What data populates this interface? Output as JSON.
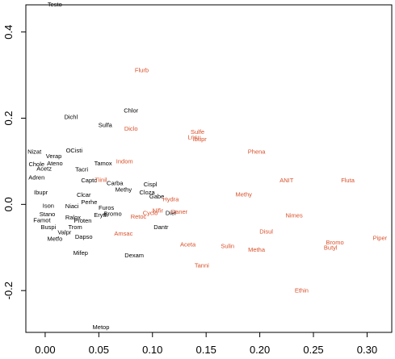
{
  "chart_data": {
    "type": "scatter",
    "title": "",
    "xlabel": "",
    "ylabel": "",
    "xlim": [
      -0.018,
      0.323
    ],
    "ylim": [
      -0.297,
      0.463
    ],
    "x_ticks": [
      0.0,
      0.05,
      0.1,
      0.15,
      0.2,
      0.25,
      0.3
    ],
    "x_tick_labels": [
      "0.00",
      "0.05",
      "0.10",
      "0.15",
      "0.20",
      "0.25",
      "0.30"
    ],
    "y_ticks": [
      -0.2,
      0.0,
      0.2,
      0.4
    ],
    "y_tick_labels": [
      "-0.2",
      "0.0",
      "0.2",
      "0.4"
    ],
    "grid": false,
    "legend": "none",
    "colors": {
      "black": "#000000",
      "red": "#d9502a"
    },
    "series": [
      {
        "color": "black",
        "points": [
          {
            "label": "Testo",
            "x": 0.009,
            "y": 0.463
          },
          {
            "label": "Dichl",
            "x": 0.024,
            "y": 0.202
          },
          {
            "label": "Chlor",
            "x": 0.08,
            "y": 0.217
          },
          {
            "label": "Sulfa",
            "x": 0.056,
            "y": 0.183
          },
          {
            "label": "Nizat",
            "x": -0.01,
            "y": 0.121
          },
          {
            "label": "Verap",
            "x": 0.008,
            "y": 0.111
          },
          {
            "label": "OCisti",
            "x": 0.027,
            "y": 0.124
          },
          {
            "label": "Chole",
            "x": -0.008,
            "y": 0.092
          },
          {
            "label": "Ateno",
            "x": 0.009,
            "y": 0.094
          },
          {
            "label": "Tamox",
            "x": 0.054,
            "y": 0.094
          },
          {
            "label": "Acetz",
            "x": -0.001,
            "y": 0.082
          },
          {
            "label": "Tacri",
            "x": 0.034,
            "y": 0.08
          },
          {
            "label": "Adren",
            "x": -0.008,
            "y": 0.061
          },
          {
            "label": "Carba",
            "x": 0.065,
            "y": 0.048
          },
          {
            "label": "Cispl",
            "x": 0.098,
            "y": 0.046
          },
          {
            "label": "Capto",
            "x": 0.041,
            "y": 0.055
          },
          {
            "label": "Methy",
            "x": 0.073,
            "y": 0.033
          },
          {
            "label": "Cloza",
            "x": 0.095,
            "y": 0.027
          },
          {
            "label": "Clcar",
            "x": 0.036,
            "y": 0.021
          },
          {
            "label": "Gabe",
            "x": 0.104,
            "y": 0.017
          },
          {
            "label": "Ibupr",
            "x": -0.004,
            "y": 0.027
          },
          {
            "label": "Perhe",
            "x": 0.041,
            "y": 0.004
          },
          {
            "label": "Ison",
            "x": 0.003,
            "y": -0.004
          },
          {
            "label": "Niaci",
            "x": 0.025,
            "y": -0.005
          },
          {
            "label": "Furos",
            "x": 0.057,
            "y": -0.009
          },
          {
            "label": "Bromo",
            "x": 0.063,
            "y": -0.023
          },
          {
            "label": "Eryth",
            "x": 0.052,
            "y": -0.026
          },
          {
            "label": "Diel",
            "x": 0.117,
            "y": -0.021
          },
          {
            "label": "Stano",
            "x": 0.002,
            "y": -0.024
          },
          {
            "label": "Ralox",
            "x": 0.026,
            "y": -0.031
          },
          {
            "label": "Famot",
            "x": -0.003,
            "y": -0.038
          },
          {
            "label": "Proten",
            "x": 0.035,
            "y": -0.039
          },
          {
            "label": "Dantr",
            "x": 0.108,
            "y": -0.054
          },
          {
            "label": "Buspi",
            "x": 0.003,
            "y": -0.054
          },
          {
            "label": "Trom",
            "x": 0.028,
            "y": -0.054
          },
          {
            "label": "Valpr",
            "x": 0.018,
            "y": -0.066
          },
          {
            "label": "Dapso",
            "x": 0.036,
            "y": -0.076
          },
          {
            "label": "Metfo",
            "x": 0.009,
            "y": -0.081
          },
          {
            "label": "Mifep",
            "x": 0.033,
            "y": -0.114
          },
          {
            "label": "Dexam",
            "x": 0.083,
            "y": -0.119
          },
          {
            "label": "Metop",
            "x": 0.052,
            "y": -0.286
          }
        ]
      },
      {
        "color": "red",
        "points": [
          {
            "label": "Flurb",
            "x": 0.09,
            "y": 0.31
          },
          {
            "label": "Diclo",
            "x": 0.08,
            "y": 0.175
          },
          {
            "label": "Sulfe",
            "x": 0.142,
            "y": 0.167
          },
          {
            "label": "Lnsu",
            "x": 0.139,
            "y": 0.155
          },
          {
            "label": "Ibupr",
            "x": 0.144,
            "y": 0.15
          },
          {
            "label": "Phena",
            "x": 0.197,
            "y": 0.121
          },
          {
            "label": "Indom",
            "x": 0.074,
            "y": 0.099
          },
          {
            "label": "Tiinil",
            "x": 0.052,
            "y": 0.056
          },
          {
            "label": "ANIT",
            "x": 0.225,
            "y": 0.055
          },
          {
            "label": "Fluta",
            "x": 0.282,
            "y": 0.055
          },
          {
            "label": "Methy",
            "x": 0.185,
            "y": 0.022
          },
          {
            "label": "Hydra",
            "x": 0.117,
            "y": 0.011
          },
          {
            "label": "Nifir",
            "x": 0.105,
            "y": -0.015
          },
          {
            "label": "Daner",
            "x": 0.125,
            "y": -0.018
          },
          {
            "label": "Cyclo",
            "x": 0.098,
            "y": -0.021
          },
          {
            "label": "Retoc",
            "x": 0.087,
            "y": -0.029
          },
          {
            "label": "Nimes",
            "x": 0.232,
            "y": -0.027
          },
          {
            "label": "Disul",
            "x": 0.206,
            "y": -0.064
          },
          {
            "label": "Amsac",
            "x": 0.073,
            "y": -0.069
          },
          {
            "label": "Aceta",
            "x": 0.133,
            "y": -0.094
          },
          {
            "label": "Sulin",
            "x": 0.17,
            "y": -0.098
          },
          {
            "label": "Metha",
            "x": 0.197,
            "y": -0.106
          },
          {
            "label": "Bromo",
            "x": 0.27,
            "y": -0.089
          },
          {
            "label": "Butyl",
            "x": 0.266,
            "y": -0.101
          },
          {
            "label": "Piper",
            "x": 0.312,
            "y": -0.079
          },
          {
            "label": "Tanni",
            "x": 0.146,
            "y": -0.143
          },
          {
            "label": "Ethin",
            "x": 0.239,
            "y": -0.201
          }
        ]
      }
    ]
  }
}
